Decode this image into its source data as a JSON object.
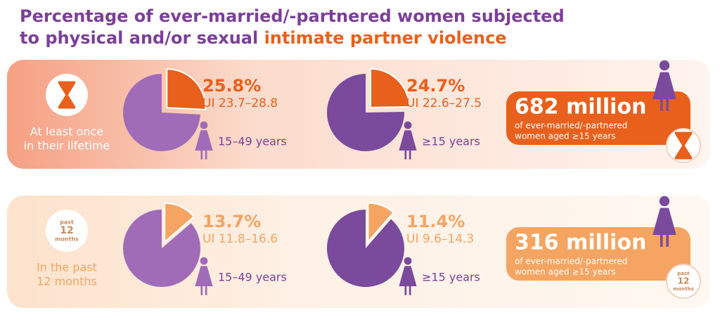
{
  "title": {
    "line1": "Percentage of ever-married/-partnered women subjected",
    "line2_start": "to physical and/or sexual ",
    "line2_highlight": "intimate partner violence"
  },
  "rows": [
    {
      "accent": "#e8601c",
      "label_lines": [
        "At least once",
        "in their lifetime"
      ],
      "icon_lines": [],
      "pies": [
        {
          "value": 25.8,
          "value_label": "25.8%",
          "ui": "UI 23.7–28.8",
          "age": "15–49 years",
          "color": "#a06cb8"
        },
        {
          "value": 24.7,
          "value_label": "24.7%",
          "ui": "UI 22.6–27.5",
          "age": "≥15 years",
          "color": "#7a4a9c"
        }
      ],
      "total": {
        "number": "682 million",
        "note_lines": [
          "of ever-married/-partnered",
          "women aged ≥15 years"
        ]
      }
    },
    {
      "accent": "#f5a461",
      "label_lines": [
        "In the past",
        "12 months"
      ],
      "icon_lines": [
        "past",
        "12",
        "months"
      ],
      "pies": [
        {
          "value": 13.7,
          "value_label": "13.7%",
          "ui": "UI 11.8–16.6",
          "age": "15–49 years",
          "color": "#a06cb8"
        },
        {
          "value": 11.4,
          "value_label": "11.4%",
          "ui": "UI 9.6–14.3",
          "age": "≥15 years",
          "color": "#7a4a9c"
        }
      ],
      "total": {
        "number": "316 million",
        "note_lines": [
          "of ever-married/-partnered",
          "women aged ≥15 years"
        ]
      }
    }
  ]
}
